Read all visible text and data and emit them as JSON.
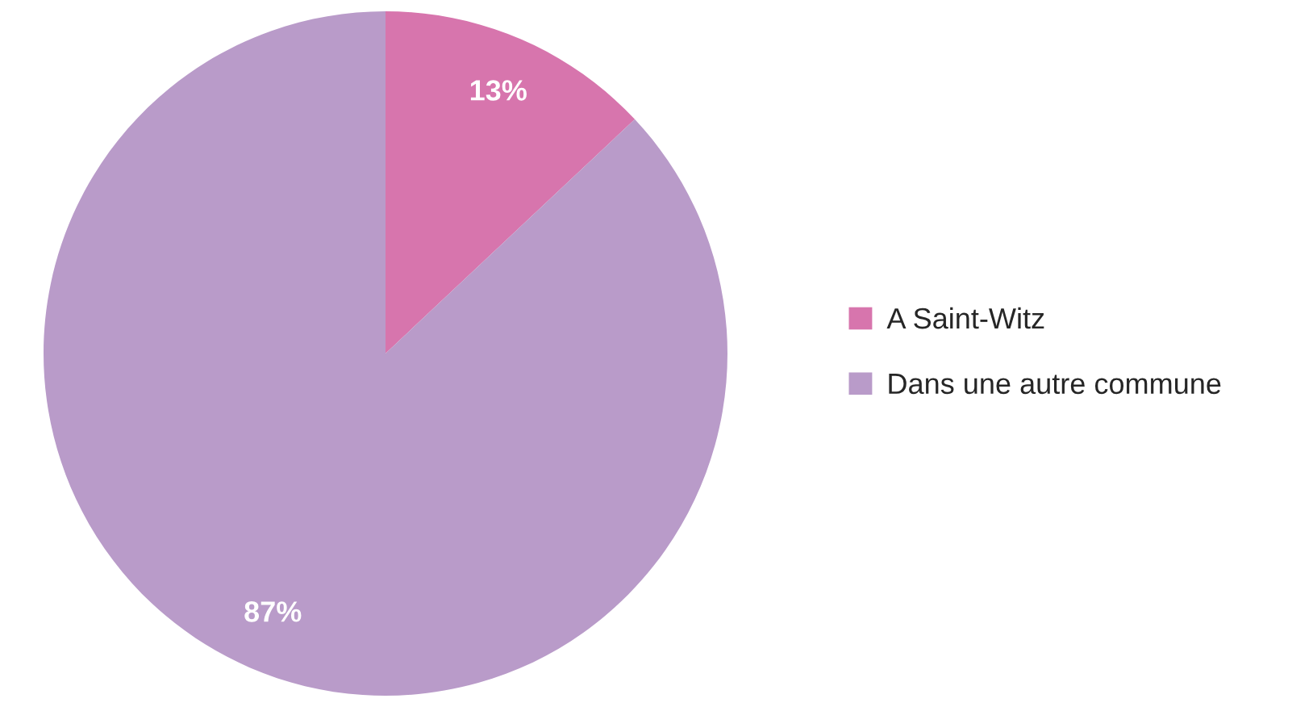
{
  "chart_data": {
    "type": "pie",
    "categories": [
      "A Saint-Witz",
      "Dans une autre commune"
    ],
    "values": [
      13,
      87
    ],
    "colors": [
      "#d775ad",
      "#b99bc9"
    ],
    "value_labels": [
      "13%",
      "87%"
    ],
    "legend": "right"
  }
}
